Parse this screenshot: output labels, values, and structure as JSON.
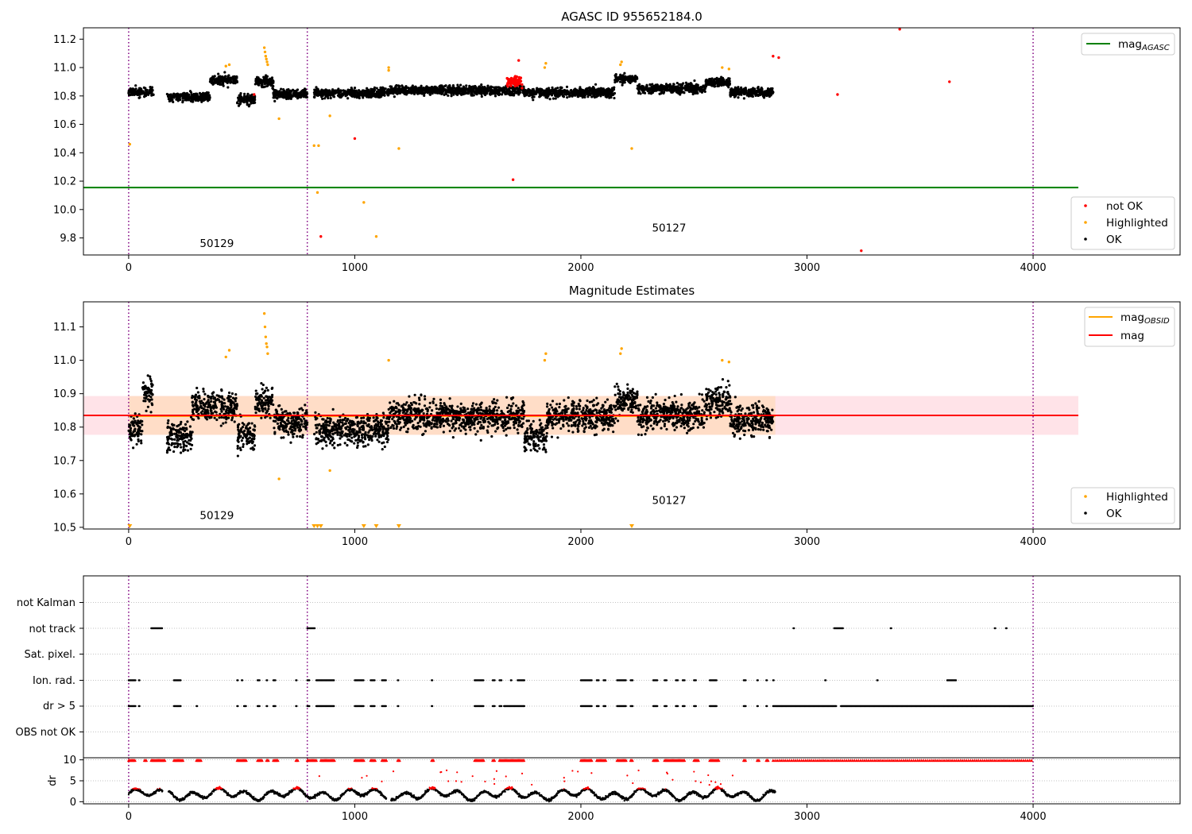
{
  "colors": {
    "ok": "#000000",
    "not_ok": "#ff0000",
    "highlighted": "#ffa500",
    "agasc_line": "#008000",
    "mag_line": "#ff0000",
    "obsid_line": "#ffa500",
    "band_pink": "#ffc0cb",
    "band_orange": "#ffdab9",
    "obs_boundary": "#800080",
    "grid": "#b0b0b0"
  },
  "chart_data": [
    {
      "type": "scatter",
      "title": "AGASC ID 955652184.0",
      "xlim": [
        -200,
        4650
      ],
      "ylim": [
        9.68,
        11.28
      ],
      "xticks": [
        "0",
        "1000",
        "2000",
        "3000",
        "4000"
      ],
      "xtick_values": [
        0,
        1000,
        2000,
        3000,
        4000
      ],
      "yticks": [
        "9.8",
        "10.0",
        "10.2",
        "10.4",
        "10.6",
        "10.8",
        "11.0",
        "11.2"
      ],
      "ytick_values": [
        9.8,
        10.0,
        10.2,
        10.4,
        10.6,
        10.8,
        11.0,
        11.2
      ],
      "lines": [
        {
          "name": "mag",
          "sub": "AGASC",
          "y": 10.155,
          "x_range": [
            -200,
            4200
          ]
        }
      ],
      "legend_top": [
        {
          "label": "mag",
          "sub": "AGASC",
          "color": "#008000"
        }
      ],
      "legend_bottom": [
        {
          "label": "not OK",
          "color": "#ff0000"
        },
        {
          "label": "Highlighted",
          "color": "#ffa500"
        },
        {
          "label": "OK",
          "color": "#000000"
        }
      ],
      "obsids": [
        {
          "label": "50129",
          "x": 390,
          "y": 9.735
        },
        {
          "label": "50127",
          "x": 2390,
          "y": 9.845
        }
      ],
      "ok_segments": [
        [
          0,
          110,
          10.82
        ],
        [
          170,
          360,
          10.79
        ],
        [
          360,
          480,
          10.91
        ],
        [
          480,
          560,
          10.78
        ],
        [
          560,
          640,
          10.9
        ],
        [
          640,
          790,
          10.81
        ],
        [
          820,
          1150,
          10.82
        ],
        [
          1150,
          1750,
          10.84
        ],
        [
          1750,
          2150,
          10.82
        ],
        [
          2150,
          2250,
          10.92
        ],
        [
          2250,
          2550,
          10.85
        ],
        [
          2550,
          2660,
          10.9
        ],
        [
          2660,
          2850,
          10.83
        ]
      ],
      "highlighted_points": [
        [
          5,
          10.46
        ],
        [
          430,
          11.01
        ],
        [
          445,
          11.02
        ],
        [
          600,
          11.14
        ],
        [
          603,
          11.11
        ],
        [
          606,
          11.08
        ],
        [
          609,
          11.06
        ],
        [
          612,
          11.04
        ],
        [
          615,
          11.02
        ],
        [
          665,
          10.64
        ],
        [
          820,
          10.45
        ],
        [
          840,
          10.45
        ],
        [
          835,
          10.12
        ],
        [
          890,
          10.66
        ],
        [
          1040,
          10.05
        ],
        [
          1095,
          9.81
        ],
        [
          1150,
          10.98
        ],
        [
          1150,
          11.0
        ],
        [
          1195,
          10.43
        ],
        [
          1840,
          11.0
        ],
        [
          1845,
          11.03
        ],
        [
          2175,
          11.02
        ],
        [
          2180,
          11.04
        ],
        [
          2225,
          10.43
        ],
        [
          2625,
          11.0
        ],
        [
          2655,
          10.99
        ]
      ],
      "not_ok_cluster": [
        1670,
        1740,
        10.9
      ],
      "not_ok_points": [
        [
          555,
          10.81
        ],
        [
          850,
          9.81
        ],
        [
          1000,
          10.5
        ],
        [
          1700,
          10.21
        ],
        [
          1725,
          11.05
        ],
        [
          2850,
          11.08
        ],
        [
          2875,
          11.07
        ],
        [
          3135,
          10.81
        ],
        [
          3240,
          9.71
        ],
        [
          3410,
          11.27
        ],
        [
          3630,
          10.9
        ]
      ],
      "obs_boundaries": [
        0,
        790,
        4000
      ]
    },
    {
      "type": "scatter",
      "title": "Magnitude Estimates",
      "xlim": [
        -200,
        4650
      ],
      "ylim": [
        10.495,
        11.175
      ],
      "xticks": [
        "0",
        "1000",
        "2000",
        "3000",
        "4000"
      ],
      "xtick_values": [
        0,
        1000,
        2000,
        3000,
        4000
      ],
      "yticks": [
        "10.5",
        "10.6",
        "10.7",
        "10.8",
        "10.9",
        "11.0",
        "11.1"
      ],
      "ytick_values": [
        10.5,
        10.6,
        10.7,
        10.8,
        10.9,
        11.0,
        11.1
      ],
      "lines": [
        {
          "name": "mag",
          "y": 10.835,
          "x_range": [
            -200,
            4200
          ]
        }
      ],
      "bands": [
        {
          "color": "#ffc0cb",
          "y0": 10.777,
          "y1": 10.893,
          "x_range": [
            -200,
            4200
          ]
        },
        {
          "color": "#ffdab9",
          "y0": 10.777,
          "y1": 10.893,
          "x_range": [
            0,
            2860
          ]
        }
      ],
      "legend_top": [
        {
          "label": "mag",
          "sub": "OBSID",
          "color": "#ffa500"
        },
        {
          "label": "mag",
          "color": "#ff0000"
        }
      ],
      "legend_bottom": [
        {
          "label": "Highlighted",
          "color": "#ffa500"
        },
        {
          "label": "OK",
          "color": "#000000"
        }
      ],
      "obsids": [
        {
          "label": "50129",
          "x": 390,
          "y": 10.525
        },
        {
          "label": "50127",
          "x": 2390,
          "y": 10.57
        }
      ],
      "ok_segments": [
        [
          0,
          60,
          10.8
        ],
        [
          60,
          110,
          10.9
        ],
        [
          170,
          280,
          10.77
        ],
        [
          280,
          480,
          10.86
        ],
        [
          480,
          560,
          10.78
        ],
        [
          560,
          640,
          10.88
        ],
        [
          640,
          790,
          10.82
        ],
        [
          820,
          1150,
          10.79
        ],
        [
          1150,
          1750,
          10.83
        ],
        [
          1750,
          1850,
          10.76
        ],
        [
          1850,
          2150,
          10.83
        ],
        [
          2150,
          2250,
          10.88
        ],
        [
          2250,
          2550,
          10.84
        ],
        [
          2550,
          2660,
          10.88
        ],
        [
          2660,
          2850,
          10.82
        ]
      ],
      "highlighted_points": [
        [
          430,
          11.01
        ],
        [
          445,
          11.03
        ],
        [
          600,
          11.14
        ],
        [
          603,
          11.1
        ],
        [
          606,
          11.07
        ],
        [
          609,
          11.05
        ],
        [
          612,
          11.04
        ],
        [
          615,
          11.02
        ],
        [
          665,
          10.645
        ],
        [
          890,
          10.67
        ],
        [
          1150,
          11.0
        ],
        [
          1840,
          11.0
        ],
        [
          1845,
          11.02
        ],
        [
          2175,
          11.02
        ],
        [
          2180,
          11.035
        ],
        [
          2625,
          11.0
        ],
        [
          2655,
          10.995
        ]
      ],
      "clipped_markers": [
        5,
        820,
        835,
        850,
        1040,
        1095,
        1195,
        2225
      ],
      "obs_boundaries": [
        0,
        790,
        4000
      ]
    },
    {
      "type": "scatter",
      "xlim": [
        -200,
        4650
      ],
      "categories": [
        "not Kalman",
        "not track",
        "Sat. pixel.",
        "Ion. rad.",
        "dr > 5",
        "OBS not OK"
      ],
      "flag_ranges": {
        "not track": [
          [
            100,
            150
          ],
          [
            790,
            825
          ],
          [
            2940,
            2945
          ],
          [
            3120,
            3160
          ],
          [
            3370,
            3375
          ],
          [
            3830,
            3835
          ],
          [
            3880,
            3885
          ]
        ],
        "Ion. rad.": [
          [
            0,
            30
          ],
          [
            45,
            50
          ],
          [
            200,
            230
          ],
          [
            480,
            485
          ],
          [
            500,
            505
          ],
          [
            570,
            580
          ],
          [
            610,
            615
          ],
          [
            640,
            650
          ],
          [
            740,
            745
          ],
          [
            790,
            800
          ],
          [
            830,
            910
          ],
          [
            1000,
            1040
          ],
          [
            1070,
            1090
          ],
          [
            1120,
            1140
          ],
          [
            1190,
            1195
          ],
          [
            1340,
            1345
          ],
          [
            1530,
            1570
          ],
          [
            1610,
            1620
          ],
          [
            1640,
            1650
          ],
          [
            1690,
            1695
          ],
          [
            1720,
            1750
          ],
          [
            2000,
            2050
          ],
          [
            2070,
            2080
          ],
          [
            2100,
            2110
          ],
          [
            2160,
            2200
          ],
          [
            2220,
            2230
          ],
          [
            2320,
            2340
          ],
          [
            2370,
            2380
          ],
          [
            2420,
            2430
          ],
          [
            2450,
            2460
          ],
          [
            2500,
            2510
          ],
          [
            2570,
            2600
          ],
          [
            2720,
            2730
          ],
          [
            2780,
            2785
          ],
          [
            2820,
            2825
          ],
          [
            2850,
            2855
          ],
          [
            3080,
            3085
          ],
          [
            3310,
            3315
          ],
          [
            3620,
            3660
          ]
        ],
        "dr > 5": [
          [
            0,
            30
          ],
          [
            45,
            50
          ],
          [
            200,
            230
          ],
          [
            300,
            305
          ],
          [
            480,
            485
          ],
          [
            510,
            520
          ],
          [
            570,
            580
          ],
          [
            610,
            615
          ],
          [
            640,
            650
          ],
          [
            740,
            745
          ],
          [
            790,
            800
          ],
          [
            830,
            910
          ],
          [
            1000,
            1040
          ],
          [
            1070,
            1090
          ],
          [
            1120,
            1140
          ],
          [
            1190,
            1195
          ],
          [
            1340,
            1345
          ],
          [
            1530,
            1570
          ],
          [
            1610,
            1620
          ],
          [
            1640,
            1650
          ],
          [
            1660,
            1750
          ],
          [
            2000,
            2050
          ],
          [
            2070,
            2080
          ],
          [
            2100,
            2110
          ],
          [
            2160,
            2200
          ],
          [
            2220,
            2230
          ],
          [
            2320,
            2340
          ],
          [
            2370,
            2380
          ],
          [
            2420,
            2430
          ],
          [
            2450,
            2460
          ],
          [
            2500,
            2510
          ],
          [
            2570,
            2600
          ],
          [
            2720,
            2730
          ],
          [
            2780,
            2785
          ],
          [
            2820,
            2825
          ],
          [
            2850,
            3130
          ],
          [
            3150,
            4000
          ]
        ]
      },
      "obs_boundaries": [
        0,
        790,
        4000
      ]
    },
    {
      "type": "scatter",
      "xlim": [
        -200,
        4650
      ],
      "ylim": [
        -0.5,
        10.5
      ],
      "ylabel": "dr",
      "yticks": [
        "0",
        "5",
        "10"
      ],
      "ytick_values": [
        0,
        5,
        10
      ],
      "xticks": [
        "0",
        "1000",
        "2000",
        "3000",
        "4000"
      ],
      "xtick_values": [
        0,
        1000,
        2000,
        3000,
        4000
      ],
      "clipped_ranges": [
        [
          0,
          30
        ],
        [
          70,
          80
        ],
        [
          100,
          160
        ],
        [
          200,
          240
        ],
        [
          300,
          320
        ],
        [
          480,
          520
        ],
        [
          570,
          590
        ],
        [
          610,
          620
        ],
        [
          640,
          660
        ],
        [
          740,
          750
        ],
        [
          790,
          830
        ],
        [
          850,
          910
        ],
        [
          1000,
          1040
        ],
        [
          1070,
          1090
        ],
        [
          1120,
          1140
        ],
        [
          1190,
          1200
        ],
        [
          1340,
          1350
        ],
        [
          1530,
          1570
        ],
        [
          1610,
          1620
        ],
        [
          1640,
          1750
        ],
        [
          2000,
          2050
        ],
        [
          2070,
          2110
        ],
        [
          2160,
          2200
        ],
        [
          2220,
          2230
        ],
        [
          2320,
          2340
        ],
        [
          2370,
          2460
        ],
        [
          2500,
          2520
        ],
        [
          2570,
          2610
        ],
        [
          2720,
          2730
        ],
        [
          2780,
          2790
        ],
        [
          2820,
          2830
        ],
        [
          2850,
          4000
        ]
      ],
      "dr_extent": [
        0,
        2860
      ],
      "obs_boundaries": [
        0,
        790,
        4000
      ]
    }
  ]
}
